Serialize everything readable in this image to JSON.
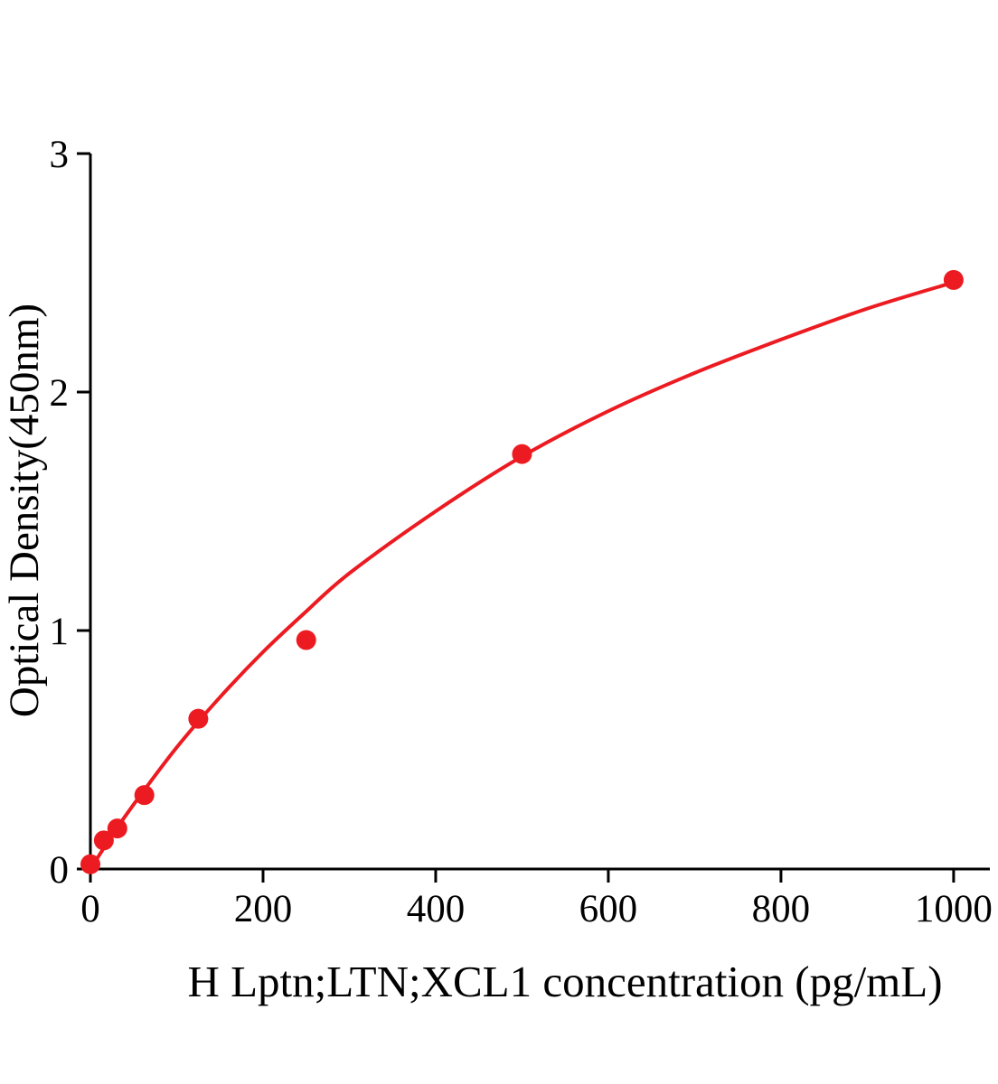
{
  "figure": {
    "background": "#ffffff"
  },
  "chart_data": {
    "type": "scatter",
    "title": "",
    "xlabel": "H Lptn;LTN;XCL1 concentration (pg/mL)",
    "ylabel": "Optical Density(450nm)",
    "series": [
      {
        "name": "standard-curve-points",
        "x": [
          0,
          15.6,
          31.2,
          62.5,
          125,
          250,
          500,
          1000
        ],
        "y": [
          0.02,
          0.12,
          0.17,
          0.31,
          0.63,
          0.96,
          1.74,
          2.47
        ]
      }
    ],
    "fit_curve": {
      "x": [
        0,
        25,
        50,
        100,
        150,
        200,
        250,
        300,
        400,
        500,
        600,
        700,
        800,
        900,
        1000
      ],
      "y": [
        0,
        0.14,
        0.27,
        0.51,
        0.72,
        0.91,
        1.08,
        1.24,
        1.5,
        1.73,
        1.92,
        2.08,
        2.22,
        2.35,
        2.46
      ]
    },
    "xlim": [
      0,
      1042
    ],
    "ylim": [
      0,
      3
    ],
    "xticks": [
      0,
      200,
      400,
      600,
      800,
      1000
    ],
    "yticks": [
      0,
      1,
      2,
      3
    ],
    "grid": false,
    "legend": "none",
    "marker_color": "#ec1b21",
    "line_color": "#ec1b21",
    "axis_color": "#000000",
    "marker_radius": 11,
    "line_width": 4
  }
}
